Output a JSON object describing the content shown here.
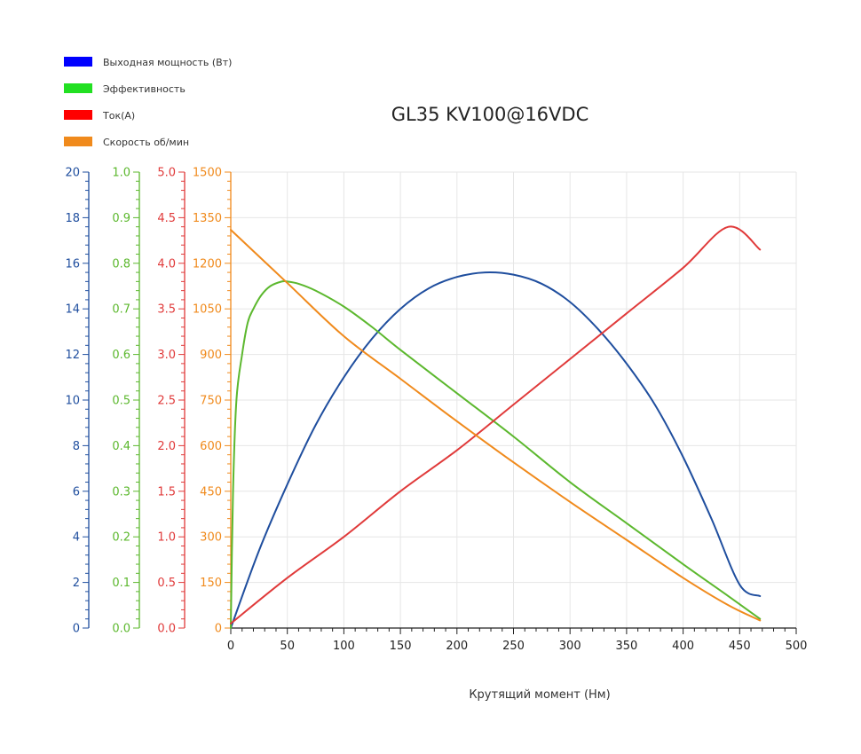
{
  "chart_data": {
    "type": "line",
    "title": "GL35 KV100@16VDC",
    "xlabel": "Крутящий момент (Нм)",
    "xlim": [
      0,
      500
    ],
    "x_ticks": [
      "0",
      "50",
      "100",
      "150",
      "200",
      "250",
      "300",
      "350",
      "400",
      "450",
      "500"
    ],
    "grid": true,
    "legend_position": "top-left",
    "y_axes": [
      {
        "id": "power",
        "color": "#1f4e9e",
        "ylim": [
          0,
          20
        ],
        "ticks": [
          "0",
          "2",
          "4",
          "6",
          "8",
          "10",
          "12",
          "14",
          "16",
          "18",
          "20"
        ]
      },
      {
        "id": "efficiency",
        "color": "#5cb82e",
        "ylim": [
          0,
          1.0
        ],
        "ticks": [
          "0.0",
          "0.1",
          "0.2",
          "0.3",
          "0.4",
          "0.5",
          "0.6",
          "0.7",
          "0.8",
          "0.9",
          "1.0"
        ]
      },
      {
        "id": "current",
        "color": "#e03a3a",
        "ylim": [
          0,
          5.0
        ],
        "ticks": [
          "0.0",
          "0.5",
          "1.0",
          "1.5",
          "2.0",
          "2.5",
          "3.0",
          "3.5",
          "4.0",
          "4.5",
          "5.0"
        ]
      },
      {
        "id": "speed",
        "color": "#f08a1c",
        "ylim": [
          0,
          1500
        ],
        "ticks": [
          "0",
          "150",
          "300",
          "450",
          "600",
          "750",
          "900",
          "1050",
          "1200",
          "1350",
          "1500"
        ]
      }
    ],
    "series": [
      {
        "name": "Выходная мощность (Вт)",
        "axis": "power",
        "color": "#1f4e9e",
        "legend_color": "#0000ff",
        "x": [
          0,
          25,
          50,
          75,
          100,
          125,
          150,
          175,
          200,
          225,
          250,
          275,
          300,
          325,
          350,
          375,
          400,
          425,
          450,
          468
        ],
        "y": [
          0,
          3.4,
          6.3,
          8.9,
          11.0,
          12.7,
          14.0,
          14.9,
          15.4,
          15.6,
          15.5,
          15.1,
          14.3,
          13.1,
          11.6,
          9.8,
          7.5,
          4.8,
          1.9,
          1.4
        ]
      },
      {
        "name": "Эффективность",
        "axis": "efficiency",
        "color": "#5cb82e",
        "legend_color": "#22e022",
        "x": [
          0,
          2,
          5,
          10,
          15,
          20,
          27,
          35,
          45,
          50,
          60,
          75,
          100,
          125,
          150,
          200,
          250,
          300,
          350,
          400,
          440,
          468
        ],
        "y": [
          0,
          0.3,
          0.5,
          0.6,
          0.67,
          0.7,
          0.73,
          0.75,
          0.76,
          0.76,
          0.755,
          0.74,
          0.705,
          0.66,
          0.61,
          0.515,
          0.42,
          0.32,
          0.23,
          0.14,
          0.07,
          0.02
        ]
      },
      {
        "name": "Ток(А)",
        "axis": "current",
        "color": "#e03a3a",
        "legend_color": "#ff0000",
        "x": [
          0,
          50,
          100,
          150,
          200,
          250,
          300,
          350,
          400,
          440,
          468
        ],
        "y": [
          0.05,
          0.55,
          1.0,
          1.5,
          1.95,
          2.45,
          2.95,
          3.45,
          3.95,
          4.4,
          4.15
        ]
      },
      {
        "name": "Скорость об/мин",
        "axis": "speed",
        "color": "#f08a1c",
        "legend_color": "#f08a1c",
        "x": [
          0,
          50,
          100,
          150,
          200,
          250,
          300,
          350,
          400,
          440,
          468
        ],
        "y": [
          1310,
          1135,
          960,
          820,
          680,
          545,
          415,
          290,
          165,
          75,
          25
        ]
      }
    ]
  }
}
